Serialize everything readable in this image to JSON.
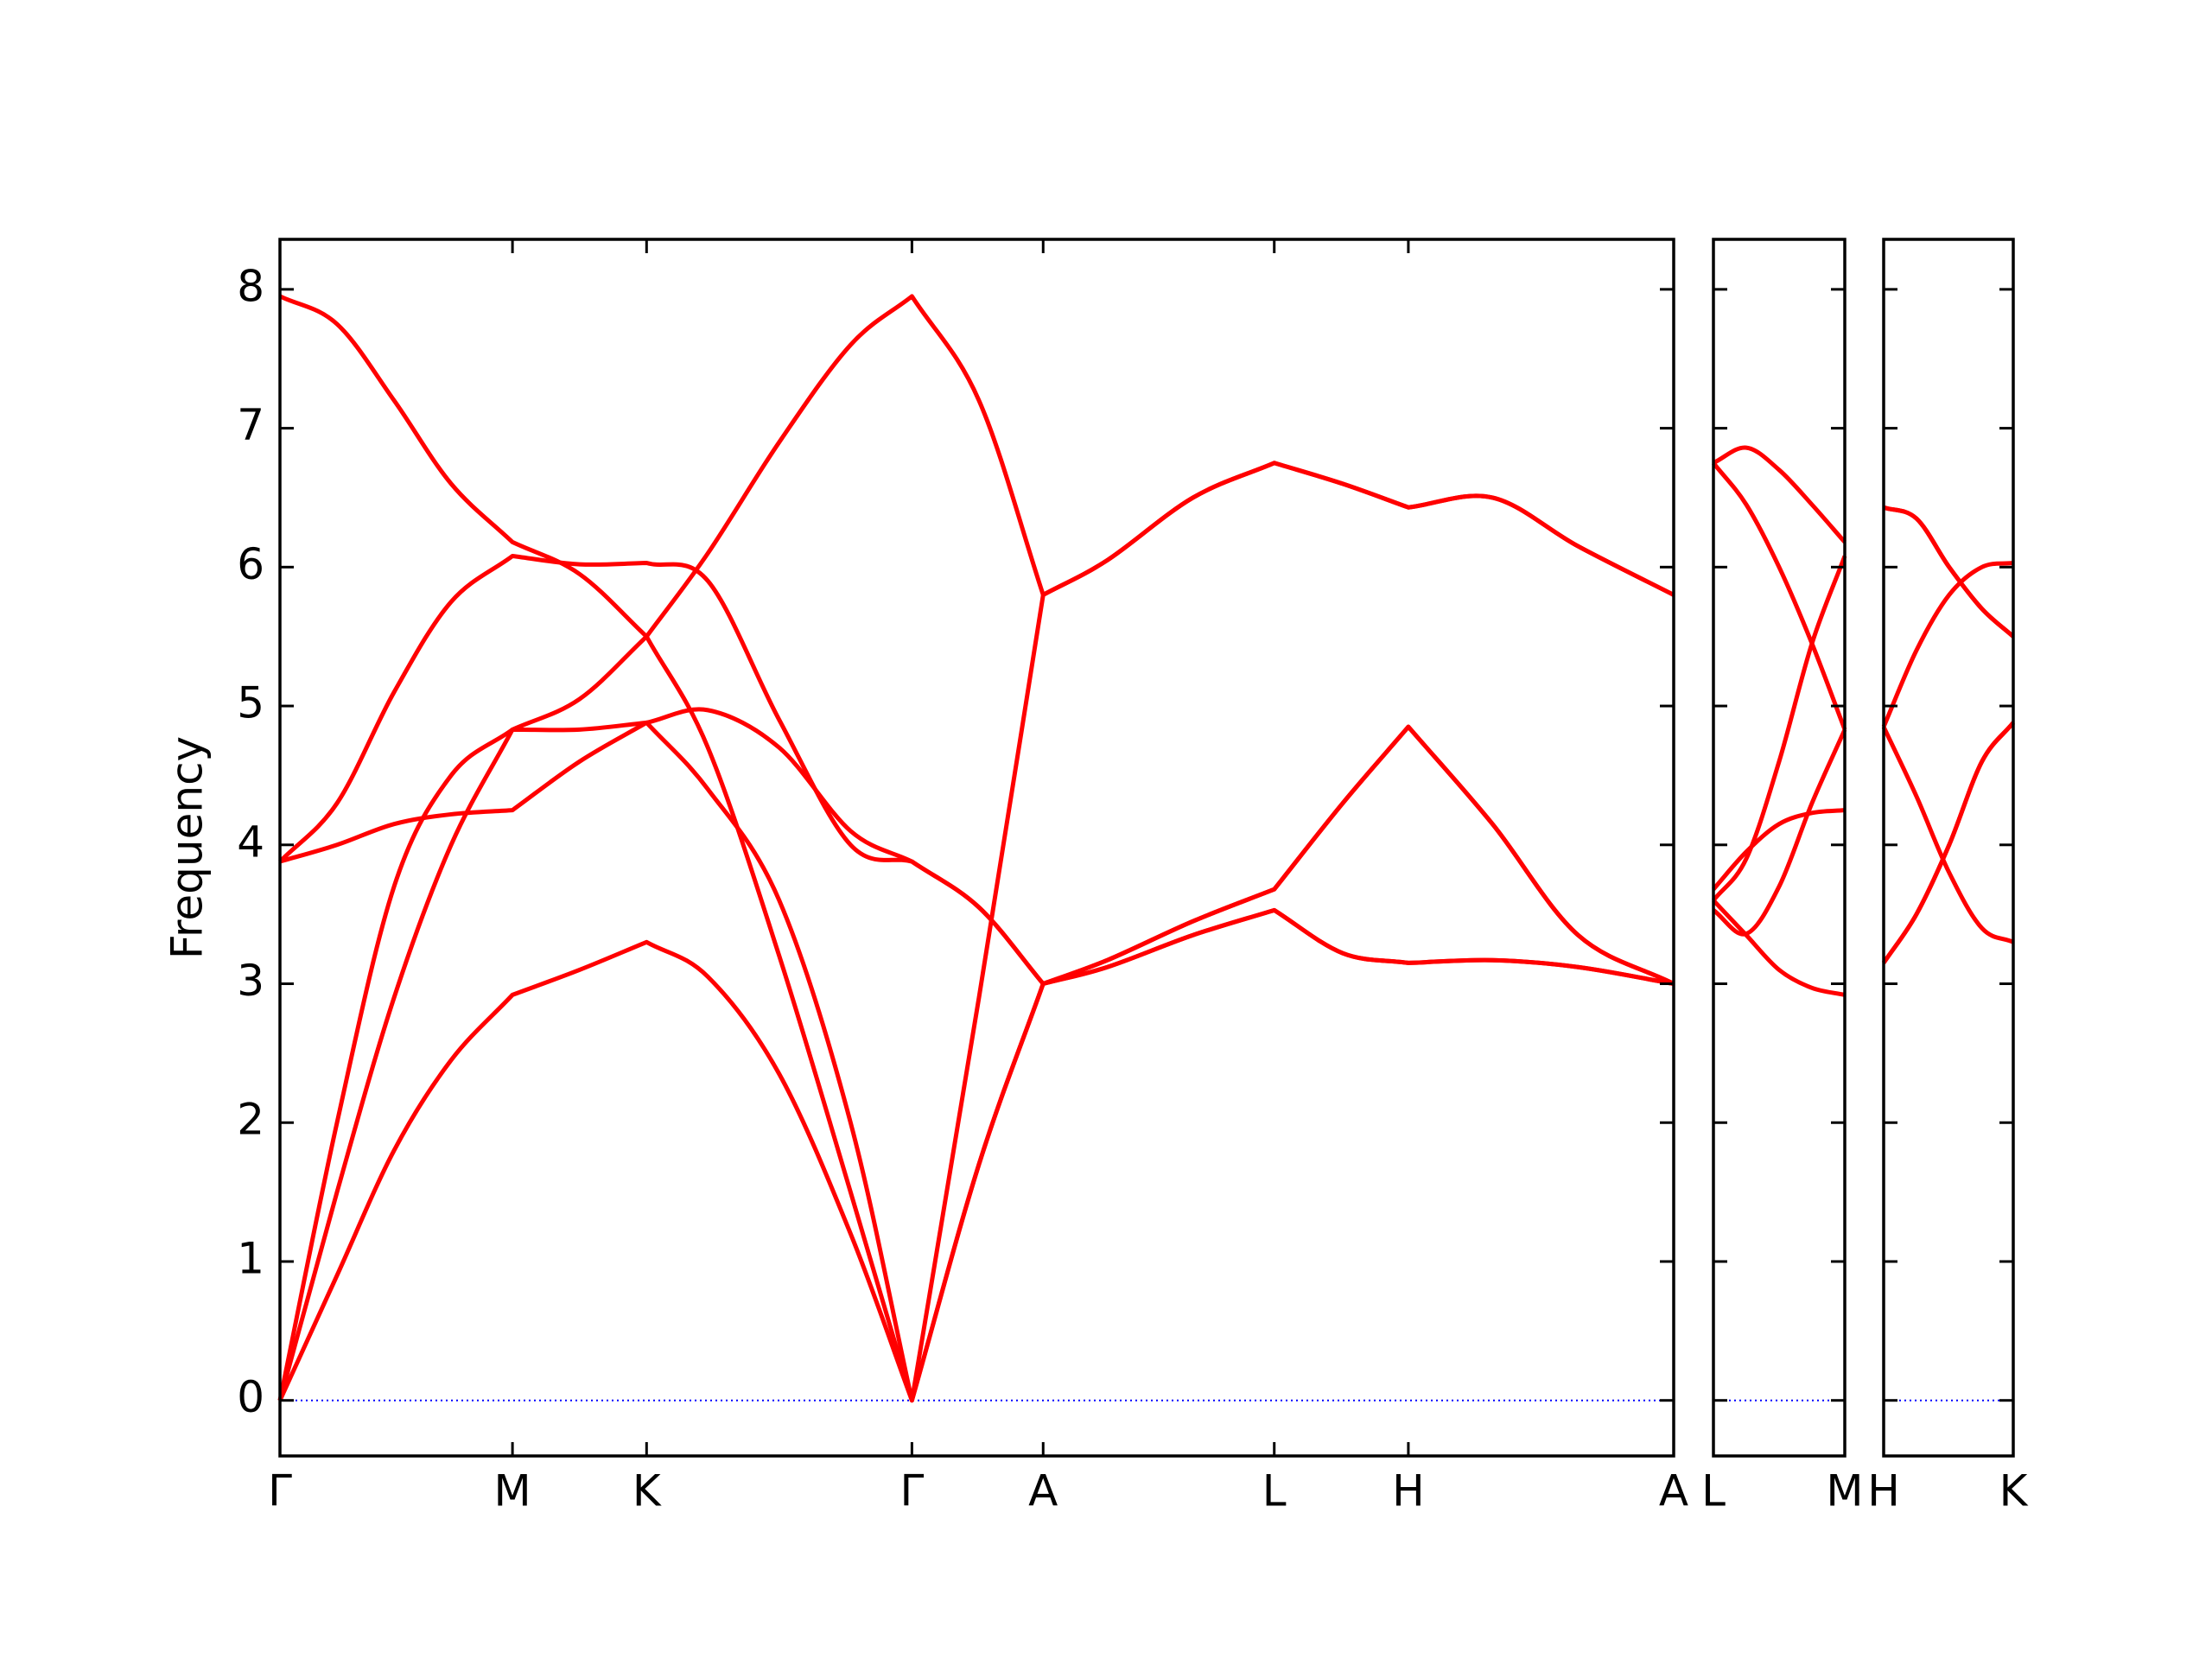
{
  "chart_data": [
    {
      "type": "line",
      "ylabel": "Frequency",
      "ytick_labels": true,
      "zero_line": true,
      "zero_line_color": "#0000ff",
      "xlim": [
        0,
        9.77
      ],
      "xticks": [
        {
          "value": 0,
          "label": "Γ"
        },
        {
          "value": 1.63,
          "label": "M"
        },
        {
          "value": 2.57,
          "label": "K"
        },
        {
          "value": 4.43,
          "label": "Γ"
        },
        {
          "value": 5.35,
          "label": "A"
        },
        {
          "value": 6.97,
          "label": "L"
        },
        {
          "value": 7.91,
          "label": "H"
        },
        {
          "value": 9.77,
          "label": "A"
        }
      ],
      "ylim": [
        -0.4,
        8.36
      ],
      "yticks": [
        0,
        1,
        2,
        3,
        4,
        5,
        6,
        7,
        8
      ],
      "x": [
        0,
        0.4,
        0.8,
        1.2,
        1.63,
        2.1,
        2.57,
        3.0,
        3.5,
        4.0,
        4.43,
        4.9,
        5.35,
        5.8,
        6.4,
        6.97,
        7.45,
        7.91,
        8.5,
        9.1,
        9.77
      ],
      "series": [
        {
          "color": "#ff0000",
          "values": [
            0,
            0.9,
            1.8,
            2.45,
            2.92,
            3.1,
            3.3,
            3.05,
            2.35,
            1.2,
            0,
            1.7,
            3.0,
            3.12,
            3.35,
            3.53,
            3.22,
            3.15,
            3.17,
            3.12,
            3.0
          ]
        },
        {
          "color": "#ff0000",
          "values": [
            0,
            1.5,
            2.9,
            4.0,
            4.83,
            4.83,
            4.88,
            4.4,
            3.6,
            2.0,
            0,
            2.9,
            5.8,
            6.05,
            6.5,
            6.75,
            6.6,
            6.43,
            6.5,
            6.15,
            5.8
          ]
        },
        {
          "color": "#ff0000",
          "values": [
            0,
            2.0,
            3.7,
            4.5,
            4.83,
            5.05,
            5.5,
            6.1,
            6.9,
            7.6,
            7.95,
            7.2,
            5.8,
            6.05,
            6.5,
            6.75,
            6.6,
            6.43,
            6.5,
            6.15,
            5.8
          ]
        },
        {
          "color": "#ff0000",
          "values": [
            3.88,
            4.0,
            4.15,
            4.22,
            4.25,
            4.6,
            4.88,
            4.97,
            4.7,
            4.1,
            3.88,
            3.55,
            3.0,
            3.17,
            3.45,
            3.68,
            4.3,
            4.85,
            4.15,
            3.35,
            3.0
          ]
        },
        {
          "color": "#ff0000",
          "values": [
            3.88,
            4.3,
            5.1,
            5.75,
            6.08,
            6.02,
            6.03,
            5.9,
            4.9,
            4.0,
            3.88,
            3.55,
            3.0,
            3.17,
            3.45,
            3.68,
            4.3,
            4.85,
            4.15,
            3.35,
            3.0
          ]
        },
        {
          "color": "#ff0000",
          "values": [
            7.95,
            7.75,
            7.2,
            6.6,
            6.18,
            5.95,
            5.5,
            4.7,
            3.2,
            1.5,
            0,
            1.7,
            3.0,
            3.12,
            3.35,
            3.53,
            3.22,
            3.15,
            3.17,
            3.12,
            3.0
          ]
        }
      ]
    },
    {
      "type": "line",
      "zero_line": true,
      "zero_line_color": "#0000ff",
      "xlim": [
        0,
        0.92
      ],
      "xticks": [
        {
          "value": 0,
          "label": "L"
        },
        {
          "value": 0.92,
          "label": "M"
        }
      ],
      "ylim": [
        -0.4,
        8.36
      ],
      "yticks": [
        0,
        1,
        2,
        3,
        4,
        5,
        6,
        7,
        8
      ],
      "x": [
        0,
        0.23,
        0.46,
        0.69,
        0.92
      ],
      "series": [
        {
          "color": "#ff0000",
          "values": [
            6.75,
            6.86,
            6.7,
            6.45,
            6.18
          ]
        },
        {
          "color": "#ff0000",
          "values": [
            6.75,
            6.45,
            6.0,
            5.45,
            4.83
          ]
        },
        {
          "color": "#ff0000",
          "values": [
            3.6,
            3.9,
            4.6,
            5.45,
            6.08
          ]
        },
        {
          "color": "#ff0000",
          "values": [
            3.68,
            3.95,
            4.15,
            4.23,
            4.25
          ]
        },
        {
          "color": "#ff0000",
          "values": [
            3.53,
            3.36,
            3.7,
            4.3,
            4.83
          ]
        },
        {
          "color": "#ff0000",
          "values": [
            3.6,
            3.35,
            3.1,
            2.97,
            2.92
          ]
        }
      ]
    },
    {
      "type": "line",
      "zero_line": true,
      "zero_line_color": "#0000ff",
      "xlim": [
        0,
        0.91
      ],
      "xticks": [
        {
          "value": 0,
          "label": "H"
        },
        {
          "value": 0.91,
          "label": "K"
        }
      ],
      "ylim": [
        -0.4,
        8.36
      ],
      "yticks": [
        0,
        1,
        2,
        3,
        4,
        5,
        6,
        7,
        8
      ],
      "x": [
        0,
        0.23,
        0.46,
        0.69,
        0.91
      ],
      "series": [
        {
          "color": "#ff0000",
          "values": [
            3.15,
            3.5,
            4.0,
            4.6,
            4.88
          ]
        },
        {
          "color": "#ff0000",
          "values": [
            6.43,
            6.35,
            6.0,
            5.7,
            5.5
          ]
        },
        {
          "color": "#ff0000",
          "values": [
            6.43,
            6.35,
            6.0,
            5.7,
            5.5
          ]
        },
        {
          "color": "#ff0000",
          "values": [
            4.85,
            4.35,
            3.8,
            3.4,
            3.3
          ]
        },
        {
          "color": "#ff0000",
          "values": [
            4.85,
            5.4,
            5.8,
            6.0,
            6.03
          ]
        },
        {
          "color": "#ff0000",
          "values": [
            3.15,
            3.5,
            4.0,
            4.6,
            4.88
          ]
        }
      ]
    }
  ]
}
